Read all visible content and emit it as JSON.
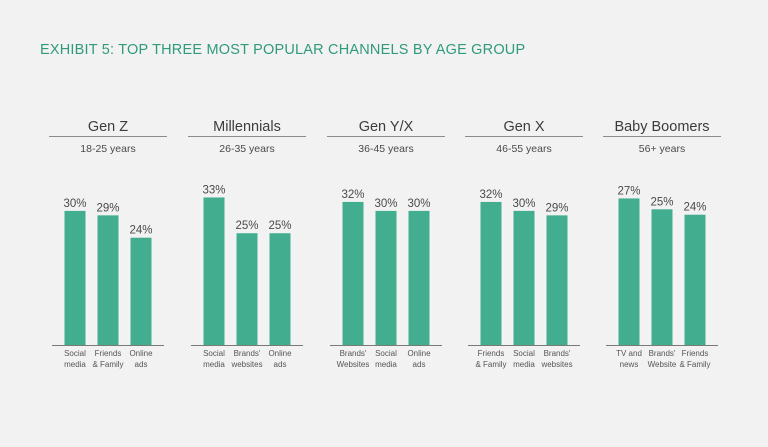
{
  "title": "EXHIBIT 5: TOP THREE MOST POPULAR CHANNELS BY AGE GROUP",
  "colors": {
    "bar": "#43ad8f",
    "title": "#2f9a7c",
    "text": "#4a4a4a",
    "rule": "#8c8c8c",
    "background": "#f2f2f2"
  },
  "chart_data": [
    {
      "type": "bar",
      "title": "Gen Z",
      "subtitle": "18-25 years",
      "ylim": [
        0,
        34
      ],
      "categories": [
        [
          "Social",
          "media"
        ],
        [
          "Friends",
          "& Family"
        ],
        [
          "Online",
          "ads"
        ]
      ],
      "values": [
        30,
        29,
        24
      ],
      "labels": [
        "30%",
        "29%",
        "24%"
      ]
    },
    {
      "type": "bar",
      "title": "Millennials",
      "subtitle": "26-35 years",
      "ylim": [
        0,
        34
      ],
      "categories": [
        [
          "Social",
          "media"
        ],
        [
          "Brands'",
          "websites"
        ],
        [
          "Online",
          "ads"
        ]
      ],
      "values": [
        33,
        25,
        25
      ],
      "labels": [
        "33%",
        "25%",
        "25%"
      ]
    },
    {
      "type": "bar",
      "title": "Gen Y/X",
      "subtitle": "36-45 years",
      "ylim": [
        0,
        34
      ],
      "categories": [
        [
          "Brands'",
          "Websites"
        ],
        [
          "Social",
          "media"
        ],
        [
          "Online",
          "ads"
        ]
      ],
      "values": [
        32,
        30,
        30
      ],
      "labels": [
        "32%",
        "30%",
        "30%"
      ]
    },
    {
      "type": "bar",
      "title": "Gen X",
      "subtitle": "46-55 years",
      "ylim": [
        0,
        34
      ],
      "categories": [
        [
          "Friends",
          "& Family"
        ],
        [
          "Social",
          "media"
        ],
        [
          "Brands'",
          "websites"
        ]
      ],
      "values": [
        32,
        30,
        29
      ],
      "labels": [
        "32%",
        "30%",
        "29%"
      ]
    },
    {
      "type": "bar",
      "title": "Baby Boomers",
      "subtitle": "56+ years",
      "ylim": [
        0,
        28
      ],
      "categories": [
        [
          "TV and",
          "news"
        ],
        [
          "Brands'",
          "Website"
        ],
        [
          "Friends",
          "& Family"
        ]
      ],
      "values": [
        27,
        25,
        24
      ],
      "labels": [
        "27%",
        "25%",
        "24%"
      ]
    }
  ]
}
